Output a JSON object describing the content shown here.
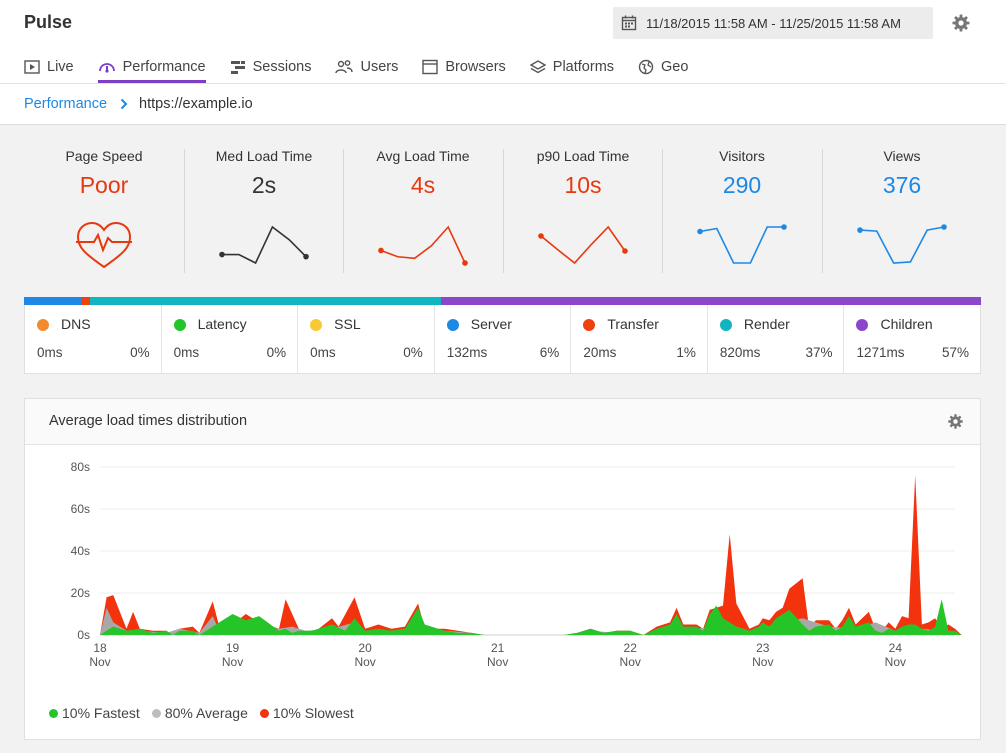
{
  "app": {
    "title": "Pulse",
    "date_range": "11/18/2015 11:58 AM - 11/25/2015 11:58 AM"
  },
  "tabs": [
    {
      "label": "Live"
    },
    {
      "label": "Performance",
      "active": true
    },
    {
      "label": "Sessions"
    },
    {
      "label": "Users"
    },
    {
      "label": "Browsers"
    },
    {
      "label": "Platforms"
    },
    {
      "label": "Geo"
    }
  ],
  "breadcrumb": {
    "link": "Performance",
    "current": "https://example.io"
  },
  "metrics": [
    {
      "label": "Page Speed",
      "value": "Poor",
      "color": "#e8380d",
      "icon": "heart-pulse-icon"
    },
    {
      "label": "Med Load Time",
      "value": "2s",
      "color": "#333333",
      "trend": [
        2.1,
        2.1,
        1.7,
        3.4,
        2.8,
        2.0
      ]
    },
    {
      "label": "Avg Load Time",
      "value": "4s",
      "color": "#e8380d",
      "trend": [
        4.0,
        3.6,
        3.5,
        4.3,
        5.5,
        3.2
      ]
    },
    {
      "label": "p90 Load Time",
      "value": "10s",
      "color": "#e8380d",
      "trend": [
        10.5,
        8.2,
        6.0,
        9.1,
        12.0,
        8.0
      ]
    },
    {
      "label": "Visitors",
      "value": "290",
      "color": "#1e88e5",
      "trend": [
        292,
        296,
        250,
        250,
        298,
        298
      ]
    },
    {
      "label": "Views",
      "value": "376",
      "color": "#1e88e5",
      "trend": [
        378,
        377,
        346,
        347,
        378,
        381
      ]
    }
  ],
  "breakdown": [
    {
      "name": "DNS",
      "ms": "0ms",
      "pct": "0%",
      "share": 0,
      "color": "#f28a30"
    },
    {
      "name": "Latency",
      "ms": "0ms",
      "pct": "0%",
      "share": 0,
      "color": "#22c42a"
    },
    {
      "name": "SSL",
      "ms": "0ms",
      "pct": "0%",
      "share": 0,
      "color": "#f7c933"
    },
    {
      "name": "Server",
      "ms": "132ms",
      "pct": "6%",
      "share": 6,
      "color": "#1e88e5"
    },
    {
      "name": "Transfer",
      "ms": "20ms",
      "pct": "1%",
      "share": 1,
      "color": "#f2400d"
    },
    {
      "name": "Render",
      "ms": "820ms",
      "pct": "37%",
      "share": 37,
      "color": "#12b5bf"
    },
    {
      "name": "Children",
      "ms": "1271ms",
      "pct": "57%",
      "share": 57,
      "color": "#8c46cc"
    }
  ],
  "panel": {
    "title": "Average load times distribution"
  },
  "chart_data": {
    "type": "area",
    "title": "Average load times distribution",
    "ylim": [
      0,
      80
    ],
    "yticks": [
      "0s",
      "20s",
      "40s",
      "60s",
      "80s"
    ],
    "xticks": [
      {
        "day": "18",
        "month": "Nov"
      },
      {
        "day": "19",
        "month": "Nov"
      },
      {
        "day": "20",
        "month": "Nov"
      },
      {
        "day": "21",
        "month": "Nov"
      },
      {
        "day": "22",
        "month": "Nov"
      },
      {
        "day": "23",
        "month": "Nov"
      },
      {
        "day": "24",
        "month": "Nov"
      }
    ],
    "x_start_day": 18,
    "x_end_day": 24.45,
    "grid": true,
    "legend_position": "bottom-left",
    "series": [
      {
        "name": "10% Slowest",
        "color": "#f2330d",
        "points": [
          [
            18.0,
            0
          ],
          [
            18.05,
            18
          ],
          [
            18.1,
            19
          ],
          [
            18.2,
            3
          ],
          [
            18.25,
            11
          ],
          [
            18.3,
            3
          ],
          [
            18.4,
            2
          ],
          [
            18.5,
            2
          ],
          [
            18.55,
            0
          ],
          [
            18.6,
            3
          ],
          [
            18.7,
            4
          ],
          [
            18.75,
            1
          ],
          [
            18.85,
            16
          ],
          [
            18.9,
            4
          ],
          [
            19.0,
            5
          ],
          [
            19.1,
            10
          ],
          [
            19.2,
            6
          ],
          [
            19.35,
            3
          ],
          [
            19.4,
            17
          ],
          [
            19.5,
            3
          ],
          [
            19.55,
            0
          ],
          [
            19.65,
            3
          ],
          [
            19.75,
            8
          ],
          [
            19.8,
            4
          ],
          [
            19.92,
            18
          ],
          [
            20.0,
            3
          ],
          [
            20.1,
            5
          ],
          [
            20.2,
            3
          ],
          [
            20.3,
            4
          ],
          [
            20.4,
            15
          ],
          [
            20.45,
            3
          ],
          [
            20.5,
            3
          ],
          [
            20.6,
            3
          ],
          [
            20.7,
            2
          ],
          [
            20.8,
            1
          ],
          [
            20.9,
            0
          ],
          [
            21.5,
            0
          ],
          [
            21.6,
            1
          ],
          [
            21.7,
            3
          ],
          [
            21.8,
            1
          ],
          [
            21.9,
            2
          ],
          [
            22.0,
            2
          ],
          [
            22.1,
            0
          ],
          [
            22.2,
            4
          ],
          [
            22.3,
            6
          ],
          [
            22.35,
            13
          ],
          [
            22.4,
            5
          ],
          [
            22.5,
            5
          ],
          [
            22.55,
            3
          ],
          [
            22.6,
            12
          ],
          [
            22.65,
            13
          ],
          [
            22.7,
            14
          ],
          [
            22.75,
            48
          ],
          [
            22.8,
            15
          ],
          [
            22.9,
            3
          ],
          [
            22.97,
            5
          ],
          [
            23.0,
            8
          ],
          [
            23.05,
            7
          ],
          [
            23.1,
            11
          ],
          [
            23.15,
            13
          ],
          [
            23.2,
            22
          ],
          [
            23.3,
            27
          ],
          [
            23.35,
            3
          ],
          [
            23.4,
            7
          ],
          [
            23.5,
            7
          ],
          [
            23.55,
            3
          ],
          [
            23.6,
            7
          ],
          [
            23.65,
            13
          ],
          [
            23.7,
            5
          ],
          [
            23.8,
            11
          ],
          [
            23.85,
            3
          ],
          [
            23.9,
            2
          ],
          [
            23.95,
            6
          ],
          [
            24.0,
            3
          ],
          [
            24.05,
            9
          ],
          [
            24.1,
            8
          ],
          [
            24.15,
            76
          ],
          [
            24.2,
            5
          ],
          [
            24.25,
            6
          ],
          [
            24.3,
            8
          ],
          [
            24.35,
            3
          ],
          [
            24.4,
            5
          ],
          [
            24.45,
            3
          ],
          [
            24.5,
            0
          ]
        ]
      },
      {
        "name": "80% Average",
        "color": "#a8a8a8",
        "points": [
          [
            18.0,
            0
          ],
          [
            18.05,
            13
          ],
          [
            18.1,
            6
          ],
          [
            18.2,
            2
          ],
          [
            18.3,
            2
          ],
          [
            18.5,
            1
          ],
          [
            18.6,
            3
          ],
          [
            18.75,
            1
          ],
          [
            18.85,
            9
          ],
          [
            18.9,
            2
          ],
          [
            19.0,
            3
          ],
          [
            19.15,
            4
          ],
          [
            19.35,
            3
          ],
          [
            19.45,
            4
          ],
          [
            19.55,
            2
          ],
          [
            19.75,
            3
          ],
          [
            19.92,
            6
          ],
          [
            20.0,
            2
          ],
          [
            20.2,
            2
          ],
          [
            20.4,
            4
          ],
          [
            20.6,
            2
          ],
          [
            20.8,
            1
          ],
          [
            20.9,
            0
          ],
          [
            21.5,
            0
          ],
          [
            21.7,
            2
          ],
          [
            21.9,
            1
          ],
          [
            22.1,
            0
          ],
          [
            22.3,
            4
          ],
          [
            22.5,
            3
          ],
          [
            22.75,
            5
          ],
          [
            22.9,
            2
          ],
          [
            23.1,
            5
          ],
          [
            23.3,
            8
          ],
          [
            23.5,
            4
          ],
          [
            23.7,
            3
          ],
          [
            23.85,
            6
          ],
          [
            24.0,
            2
          ],
          [
            24.2,
            3
          ],
          [
            24.35,
            2
          ],
          [
            24.5,
            0
          ]
        ]
      },
      {
        "name": "10% Fastest",
        "color": "#25c428",
        "points": [
          [
            18.0,
            0
          ],
          [
            18.05,
            2
          ],
          [
            18.1,
            4
          ],
          [
            18.2,
            2
          ],
          [
            18.3,
            3
          ],
          [
            18.4,
            1
          ],
          [
            18.5,
            2
          ],
          [
            18.55,
            0
          ],
          [
            18.6,
            2
          ],
          [
            18.7,
            2
          ],
          [
            18.75,
            0
          ],
          [
            18.85,
            4
          ],
          [
            18.9,
            6
          ],
          [
            19.0,
            10
          ],
          [
            19.1,
            7
          ],
          [
            19.2,
            9
          ],
          [
            19.35,
            2
          ],
          [
            19.4,
            3
          ],
          [
            19.45,
            1
          ],
          [
            19.5,
            2
          ],
          [
            19.6,
            2
          ],
          [
            19.75,
            5
          ],
          [
            19.85,
            2
          ],
          [
            19.92,
            8
          ],
          [
            20.0,
            2
          ],
          [
            20.1,
            3
          ],
          [
            20.2,
            2
          ],
          [
            20.3,
            3
          ],
          [
            20.4,
            13
          ],
          [
            20.45,
            5
          ],
          [
            20.5,
            4
          ],
          [
            20.6,
            2
          ],
          [
            20.7,
            1
          ],
          [
            20.8,
            1
          ],
          [
            20.9,
            0
          ],
          [
            21.5,
            0
          ],
          [
            21.6,
            1
          ],
          [
            21.7,
            3
          ],
          [
            21.8,
            1
          ],
          [
            21.9,
            2
          ],
          [
            22.0,
            2
          ],
          [
            22.1,
            0
          ],
          [
            22.2,
            3
          ],
          [
            22.3,
            5
          ],
          [
            22.35,
            10
          ],
          [
            22.4,
            4
          ],
          [
            22.5,
            4
          ],
          [
            22.55,
            2
          ],
          [
            22.6,
            10
          ],
          [
            22.65,
            14
          ],
          [
            22.7,
            8
          ],
          [
            22.75,
            6
          ],
          [
            22.8,
            4
          ],
          [
            22.9,
            2
          ],
          [
            22.97,
            4
          ],
          [
            23.0,
            6
          ],
          [
            23.05,
            4
          ],
          [
            23.1,
            8
          ],
          [
            23.15,
            10
          ],
          [
            23.2,
            12
          ],
          [
            23.3,
            5
          ],
          [
            23.35,
            2
          ],
          [
            23.4,
            4
          ],
          [
            23.5,
            5
          ],
          [
            23.55,
            2
          ],
          [
            23.6,
            4
          ],
          [
            23.65,
            9
          ],
          [
            23.7,
            4
          ],
          [
            23.8,
            6
          ],
          [
            23.85,
            2
          ],
          [
            23.9,
            1
          ],
          [
            23.95,
            3
          ],
          [
            24.0,
            2
          ],
          [
            24.05,
            4
          ],
          [
            24.1,
            5
          ],
          [
            24.15,
            5
          ],
          [
            24.2,
            3
          ],
          [
            24.25,
            2
          ],
          [
            24.3,
            4
          ],
          [
            24.35,
            17
          ],
          [
            24.4,
            2
          ],
          [
            24.45,
            2
          ],
          [
            24.5,
            0
          ]
        ]
      }
    ],
    "legend": [
      {
        "name": "10% Fastest",
        "color": "#25c428"
      },
      {
        "name": "80% Average",
        "color": "#bdbdbd"
      },
      {
        "name": "10% Slowest",
        "color": "#f2330d"
      }
    ]
  }
}
